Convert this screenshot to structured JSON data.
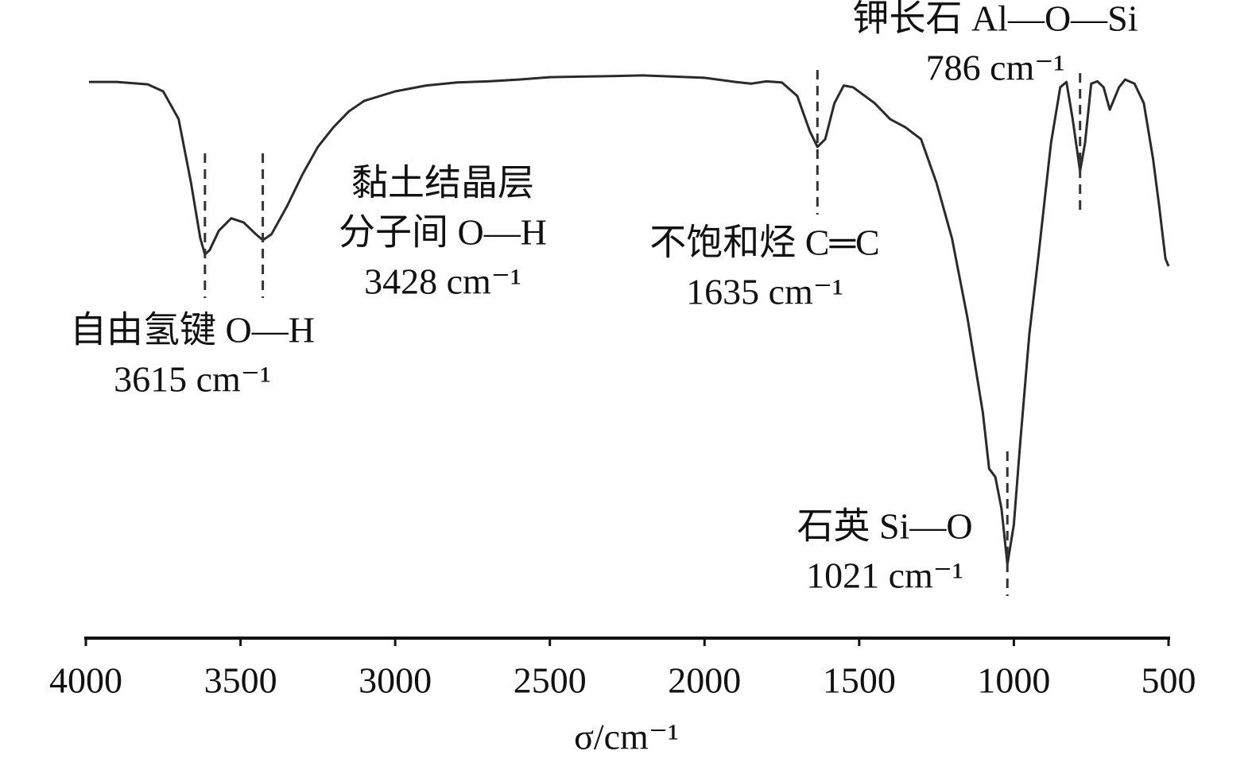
{
  "chart_data": {
    "type": "line",
    "xlabel": "σ/cm⁻¹",
    "xlim": [
      4000,
      500
    ],
    "xticks": [
      4000,
      3500,
      3000,
      2500,
      2000,
      1500,
      1000,
      500
    ],
    "ylim": [
      0,
      100
    ],
    "color": "#2a2a2a",
    "x": [
      3990,
      3900,
      3800,
      3750,
      3700,
      3660,
      3630,
      3615,
      3600,
      3570,
      3530,
      3490,
      3450,
      3428,
      3400,
      3350,
      3300,
      3250,
      3200,
      3150,
      3100,
      3000,
      2900,
      2800,
      2700,
      2600,
      2500,
      2400,
      2300,
      2200,
      2100,
      2000,
      1900,
      1850,
      1800,
      1750,
      1700,
      1660,
      1635,
      1610,
      1580,
      1550,
      1520,
      1450,
      1400,
      1350,
      1300,
      1250,
      1200,
      1150,
      1100,
      1080,
      1060,
      1040,
      1021,
      1000,
      980,
      950,
      920,
      900,
      880,
      850,
      830,
      810,
      786,
      770,
      750,
      730,
      710,
      690,
      660,
      640,
      610,
      580,
      550,
      530,
      510,
      500
    ],
    "values": [
      94.2,
      94.2,
      93.8,
      92.6,
      87.9,
      77.1,
      67.7,
      65.0,
      65.7,
      69.0,
      71.1,
      70.4,
      68.4,
      67.4,
      68.4,
      73.1,
      78.5,
      83.2,
      86.5,
      89.2,
      91.0,
      92.6,
      93.6,
      94.1,
      94.3,
      94.6,
      95.0,
      95.1,
      95.2,
      95.3,
      95.1,
      94.9,
      94.2,
      93.9,
      94.3,
      94.1,
      91.8,
      85.9,
      83.2,
      84.5,
      90.6,
      93.6,
      93.3,
      90.6,
      87.9,
      86.5,
      84.5,
      77.1,
      67.7,
      54.2,
      38.1,
      28.7,
      27.3,
      21.9,
      12.5,
      19.2,
      32.7,
      51.5,
      65.0,
      74.4,
      83.8,
      93.3,
      94.2,
      87.9,
      79.1,
      83.8,
      93.9,
      94.3,
      93.3,
      89.5,
      93.3,
      94.6,
      93.9,
      90.6,
      81.2,
      73.1,
      64.3,
      63.0
    ],
    "annotations": [
      {
        "x": 3615,
        "lines": [
          "自由氢键 O—H",
          "3615 cm⁻¹"
        ]
      },
      {
        "x": 3428,
        "lines": [
          "黏土结晶层",
          "分子间 O—H",
          "3428 cm⁻¹"
        ]
      },
      {
        "x": 1635,
        "lines": [
          "不饱和烃 C═C",
          "1635 cm⁻¹"
        ]
      },
      {
        "x": 786,
        "lines": [
          "钾长石 Al—O—Si",
          "786 cm⁻¹"
        ]
      },
      {
        "x": 1021,
        "lines": [
          "石英 Si—O",
          "1021 cm⁻¹"
        ]
      }
    ]
  }
}
